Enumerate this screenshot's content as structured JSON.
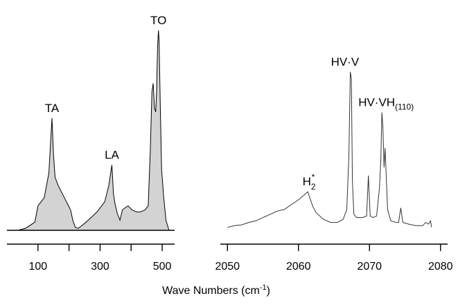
{
  "chart_data": [
    {
      "type": "area",
      "xlabel": "",
      "ylabel": "",
      "xlim": [
        0,
        540
      ],
      "ylim": [
        0,
        1
      ],
      "grid": false,
      "x_ticks": [
        100,
        200,
        300,
        400,
        500
      ],
      "x_tick_labels": [
        "100",
        "300",
        "500"
      ],
      "x_tick_label_values": [
        100,
        300,
        500
      ],
      "fill_color": "#d3d3d3",
      "line_color": "#000000",
      "series": [
        {
          "x": [
            35,
            60,
            90,
            100,
            105,
            120,
            135,
            145,
            150,
            155,
            165,
            185,
            205,
            212,
            220,
            230,
            255,
            290,
            315,
            328,
            338,
            343,
            348,
            356,
            364,
            372,
            380,
            390,
            403,
            418,
            430,
            445,
            455,
            462,
            467,
            471,
            475,
            479,
            482,
            485,
            488,
            490,
            494,
            498,
            505,
            512,
            522
          ],
          "y": [
            0.0,
            0.01,
            0.04,
            0.12,
            0.13,
            0.16,
            0.28,
            0.55,
            0.37,
            0.26,
            0.22,
            0.16,
            0.1,
            0.05,
            0.015,
            0.01,
            0.04,
            0.09,
            0.14,
            0.22,
            0.32,
            0.18,
            0.13,
            0.08,
            0.05,
            0.1,
            0.11,
            0.12,
            0.1,
            0.09,
            0.09,
            0.1,
            0.12,
            0.4,
            0.68,
            0.72,
            0.6,
            0.58,
            0.68,
            0.9,
            0.98,
            0.93,
            0.6,
            0.3,
            0.16,
            0.05,
            0.0
          ]
        }
      ],
      "annotations": [
        {
          "text": "TA",
          "x": 145,
          "y": 0.55
        },
        {
          "text": "LA",
          "x": 338,
          "y": 0.32
        },
        {
          "text": "TO",
          "x": 488,
          "y": 0.98
        }
      ]
    },
    {
      "type": "line",
      "xlabel": "",
      "ylabel": "",
      "xlim": [
        2049,
        2081
      ],
      "ylim": [
        0,
        1
      ],
      "grid": false,
      "x_ticks": [
        2050,
        2060,
        2070,
        2080
      ],
      "x_tick_labels": [
        "2050",
        "2060",
        "2070",
        "2080"
      ],
      "line_color": "#333333",
      "series": [
        {
          "x": [
            2050.0,
            2051.0,
            2052.0,
            2053.0,
            2054.0,
            2055.0,
            2056.0,
            2057.0,
            2058.0,
            2059.0,
            2060.0,
            2060.8,
            2061.3,
            2062.0,
            2062.5,
            2063.5,
            2064.5,
            2065.5,
            2066.3,
            2066.8,
            2067.1,
            2067.3,
            2067.45,
            2067.6,
            2067.8,
            2068.2,
            2069.0,
            2069.6,
            2069.85,
            2070.1,
            2070.5,
            2071.0,
            2071.4,
            2071.6,
            2071.75,
            2071.9,
            2072.05,
            2072.2,
            2072.35,
            2072.55,
            2073.0,
            2073.8,
            2074.1,
            2074.4,
            2074.7,
            2075.5,
            2076.5,
            2077.5,
            2077.9,
            2078.3,
            2078.6,
            2078.75
          ],
          "y": [
            0.01,
            0.02,
            0.025,
            0.04,
            0.05,
            0.07,
            0.09,
            0.11,
            0.12,
            0.15,
            0.18,
            0.21,
            0.23,
            0.14,
            0.1,
            0.06,
            0.04,
            0.04,
            0.06,
            0.12,
            0.45,
            0.97,
            0.93,
            0.3,
            0.09,
            0.07,
            0.07,
            0.08,
            0.33,
            0.08,
            0.07,
            0.08,
            0.25,
            0.42,
            0.72,
            0.62,
            0.38,
            0.5,
            0.34,
            0.12,
            0.05,
            0.04,
            0.04,
            0.13,
            0.04,
            0.03,
            0.02,
            0.02,
            0.04,
            0.03,
            0.05,
            0.01
          ]
        }
      ],
      "annotations": [
        {
          "text": "H",
          "sub": "2",
          "sup": "*",
          "x": 2061.5,
          "y": 0.23
        },
        {
          "text": "HV·V",
          "x": 2067.3,
          "y": 0.97
        },
        {
          "text": "HV·VH",
          "sub": "(110)",
          "x": 2071.75,
          "y": 0.72
        }
      ]
    }
  ],
  "axis_title": {
    "text": "Wave Numbers (cm",
    "sup": "-1",
    "suffix": ")"
  }
}
